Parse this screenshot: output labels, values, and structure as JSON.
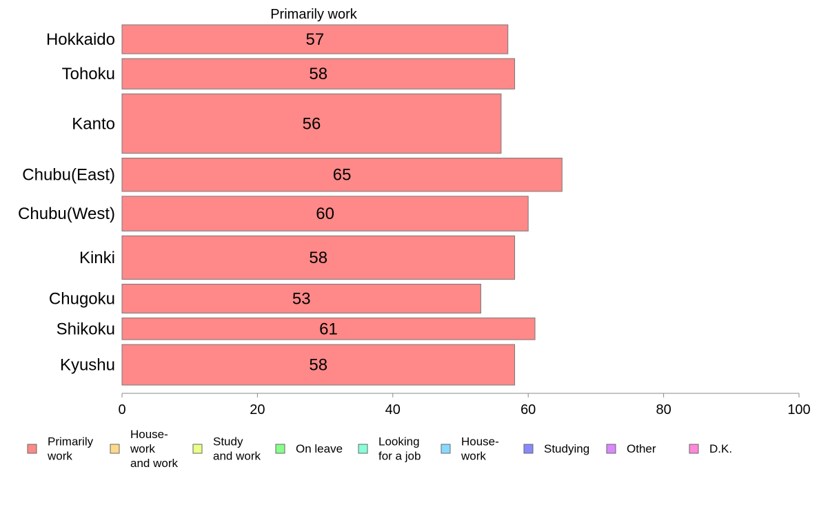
{
  "chart_data": {
    "type": "bar",
    "orientation": "horizontal",
    "title": "Primarily work",
    "categories": [
      "Hokkaido",
      "Tohoku",
      "Kanto",
      "Chubu(East)",
      "Chubu(West)",
      "Kinki",
      "Chugoku",
      "Shikoku",
      "Kyushu"
    ],
    "values": [
      57,
      58,
      56,
      65,
      60,
      58,
      53,
      61,
      58
    ],
    "value_labels": [
      "57",
      "58",
      "56",
      "65",
      "60",
      "58",
      "53",
      "61",
      "58"
    ],
    "relative_bar_thickness": [
      1.0,
      1.05,
      2.05,
      1.15,
      1.2,
      1.5,
      1.0,
      0.75,
      1.4
    ],
    "xlim": [
      0,
      100
    ],
    "xticks": [
      0,
      20,
      40,
      60,
      80,
      100
    ],
    "xtick_labels": [
      "0",
      "20",
      "40",
      "60",
      "80",
      "100"
    ],
    "xlabel": "",
    "ylabel": "",
    "grid": false,
    "legend_position": "bottom",
    "bar_color": "#ff8888",
    "bar_edge_color": "#777777",
    "legend": [
      {
        "lines": [
          "Primarily",
          "work"
        ],
        "color": "#ff8888"
      },
      {
        "lines": [
          "House-",
          "work",
          "and work"
        ],
        "color": "#ffd98a"
      },
      {
        "lines": [
          "Study",
          "and work"
        ],
        "color": "#e8ff88"
      },
      {
        "lines": [
          "On leave"
        ],
        "color": "#88ff88"
      },
      {
        "lines": [
          "Looking",
          "for a job"
        ],
        "color": "#88ffd9"
      },
      {
        "lines": [
          "House-",
          "work"
        ],
        "color": "#88d9ff"
      },
      {
        "lines": [
          "Studying"
        ],
        "color": "#8888ff"
      },
      {
        "lines": [
          "Other"
        ],
        "color": "#d988ff"
      },
      {
        "lines": [
          "D.K."
        ],
        "color": "#ff88d9"
      }
    ]
  }
}
